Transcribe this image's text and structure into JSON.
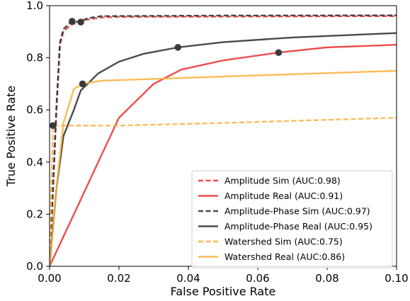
{
  "chart_data": {
    "type": "line",
    "title": "",
    "xlabel": "False Positive Rate",
    "ylabel": "True Positive Rate",
    "xlim": [
      0,
      0.1
    ],
    "ylim": [
      0,
      1.0
    ],
    "xticks": [
      0,
      0.02,
      0.04,
      0.06,
      0.08,
      0.1
    ],
    "xtick_labels": [
      "0.00",
      "0.02",
      "0.04",
      "0.06",
      "0.08",
      "0.10"
    ],
    "yticks": [
      0,
      0.2,
      0.4,
      0.6,
      0.8,
      1.0
    ],
    "ytick_labels": [
      "0.0",
      "0.2",
      "0.4",
      "0.6",
      "0.8",
      "1.0"
    ],
    "grid": false,
    "legend_position": "lower-right",
    "series": [
      {
        "name": "Amplitude Sim (AUC:0.98)",
        "color": "#e8302f",
        "dash": true,
        "points": [
          [
            0,
            0
          ],
          [
            0.001,
            0.3
          ],
          [
            0.002,
            0.6
          ],
          [
            0.003,
            0.85
          ],
          [
            0.004,
            0.9
          ],
          [
            0.006,
            0.925
          ],
          [
            0.01,
            0.945
          ],
          [
            0.015,
            0.955
          ],
          [
            0.02,
            0.957
          ],
          [
            0.05,
            0.958
          ],
          [
            0.1,
            0.96
          ]
        ]
      },
      {
        "name": "Amplitude Real (AUC:0.91)",
        "color": "#e8302f",
        "dash": false,
        "points": [
          [
            0,
            0
          ],
          [
            0.02,
            0.57
          ],
          [
            0.03,
            0.7
          ],
          [
            0.038,
            0.755
          ],
          [
            0.05,
            0.79
          ],
          [
            0.066,
            0.82
          ],
          [
            0.08,
            0.84
          ],
          [
            0.1,
            0.85
          ]
        ]
      },
      {
        "name": "Amplitude-Phase Sim (AUC:0.97)",
        "color": "#2b2b2b",
        "dash": true,
        "points": [
          [
            0,
            0
          ],
          [
            0.001,
            0.3
          ],
          [
            0.002,
            0.62
          ],
          [
            0.003,
            0.86
          ],
          [
            0.004,
            0.91
          ],
          [
            0.006,
            0.935
          ],
          [
            0.009,
            0.94
          ],
          [
            0.011,
            0.952
          ],
          [
            0.015,
            0.96
          ],
          [
            0.05,
            0.962
          ],
          [
            0.1,
            0.963
          ]
        ]
      },
      {
        "name": "Amplitude-Phase Real (AUC:0.95)",
        "color": "#2b2b2b",
        "dash": false,
        "points": [
          [
            0,
            0
          ],
          [
            0.002,
            0.3
          ],
          [
            0.004,
            0.5
          ],
          [
            0.007,
            0.6
          ],
          [
            0.009,
            0.675
          ],
          [
            0.011,
            0.7
          ],
          [
            0.014,
            0.74
          ],
          [
            0.02,
            0.785
          ],
          [
            0.027,
            0.815
          ],
          [
            0.037,
            0.84
          ],
          [
            0.05,
            0.86
          ],
          [
            0.07,
            0.878
          ],
          [
            0.1,
            0.895
          ]
        ]
      },
      {
        "name": "Watershed Sim (AUC:0.75)",
        "color": "#fbb03b",
        "dash": true,
        "points": [
          [
            0,
            0
          ],
          [
            0.0005,
            0.3
          ],
          [
            0.001,
            0.54
          ],
          [
            0.02,
            0.54
          ],
          [
            0.05,
            0.55
          ],
          [
            0.1,
            0.57
          ]
        ]
      },
      {
        "name": "Watershed Real (AUC:0.86)",
        "color": "#fbb03b",
        "dash": false,
        "points": [
          [
            0,
            0
          ],
          [
            0.002,
            0.3
          ],
          [
            0.004,
            0.55
          ],
          [
            0.007,
            0.68
          ],
          [
            0.0095,
            0.7
          ],
          [
            0.015,
            0.712
          ],
          [
            0.05,
            0.728
          ],
          [
            0.1,
            0.75
          ]
        ]
      }
    ],
    "markers": [
      {
        "x": 0.001,
        "y": 0.54
      },
      {
        "x": 0.0065,
        "y": 0.94
      },
      {
        "x": 0.009,
        "y": 0.937
      },
      {
        "x": 0.0095,
        "y": 0.7
      },
      {
        "x": 0.037,
        "y": 0.84
      },
      {
        "x": 0.066,
        "y": 0.82
      }
    ],
    "marker_color": "#3a3a3a"
  }
}
